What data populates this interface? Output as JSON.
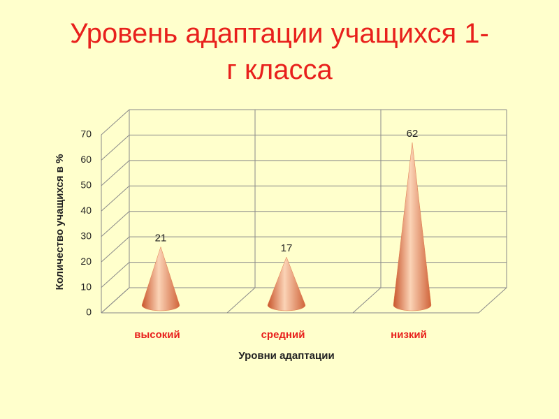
{
  "chart_data": {
    "type": "cone3d",
    "title": "Уровень адаптации учащихся 1-г класса",
    "categories": [
      "высокий",
      "средний",
      "низкий"
    ],
    "values": [
      21,
      17,
      62
    ],
    "color": "#e07a4a",
    "x_label": "Уровни адаптации",
    "y_label": "Количество учащихся в %",
    "ylim": [
      0,
      70
    ],
    "yticks": [
      0,
      10,
      20,
      30,
      40,
      50,
      60,
      70
    ],
    "grid": true
  }
}
